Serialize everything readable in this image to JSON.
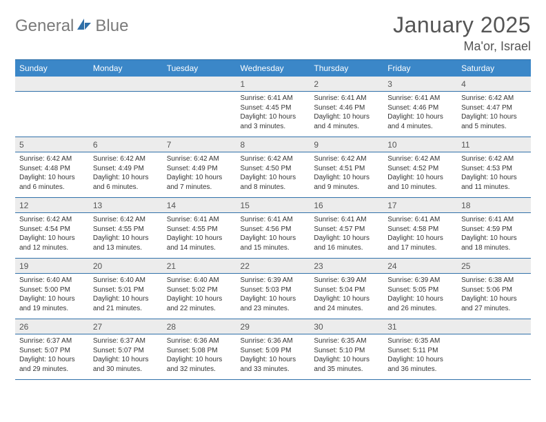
{
  "brand": {
    "part1": "General",
    "part2": "Blue"
  },
  "title": {
    "month": "January 2025",
    "location": "Ma'or, Israel"
  },
  "colors": {
    "header_bg": "#3b87c8",
    "rule": "#2f6fa8",
    "daynum_bg": "#ececec",
    "text": "#333333",
    "muted": "#555555",
    "brand_gray": "#7a7a7a",
    "brand_blue": "#2f6fa8"
  },
  "font": {
    "family": "Arial",
    "daynum_size": 12,
    "info_size": 10,
    "month_size": 32,
    "location_size": 18,
    "header_size": 12
  },
  "weekdays": [
    "Sunday",
    "Monday",
    "Tuesday",
    "Wednesday",
    "Thursday",
    "Friday",
    "Saturday"
  ],
  "weeks": [
    {
      "nums": [
        "",
        "",
        "",
        "1",
        "2",
        "3",
        "4"
      ],
      "info": [
        "",
        "",
        "",
        "Sunrise: 6:41 AM\nSunset: 4:45 PM\nDaylight: 10 hours and 3 minutes.",
        "Sunrise: 6:41 AM\nSunset: 4:46 PM\nDaylight: 10 hours and 4 minutes.",
        "Sunrise: 6:41 AM\nSunset: 4:46 PM\nDaylight: 10 hours and 4 minutes.",
        "Sunrise: 6:42 AM\nSunset: 4:47 PM\nDaylight: 10 hours and 5 minutes."
      ]
    },
    {
      "nums": [
        "5",
        "6",
        "7",
        "8",
        "9",
        "10",
        "11"
      ],
      "info": [
        "Sunrise: 6:42 AM\nSunset: 4:48 PM\nDaylight: 10 hours and 6 minutes.",
        "Sunrise: 6:42 AM\nSunset: 4:49 PM\nDaylight: 10 hours and 6 minutes.",
        "Sunrise: 6:42 AM\nSunset: 4:49 PM\nDaylight: 10 hours and 7 minutes.",
        "Sunrise: 6:42 AM\nSunset: 4:50 PM\nDaylight: 10 hours and 8 minutes.",
        "Sunrise: 6:42 AM\nSunset: 4:51 PM\nDaylight: 10 hours and 9 minutes.",
        "Sunrise: 6:42 AM\nSunset: 4:52 PM\nDaylight: 10 hours and 10 minutes.",
        "Sunrise: 6:42 AM\nSunset: 4:53 PM\nDaylight: 10 hours and 11 minutes."
      ]
    },
    {
      "nums": [
        "12",
        "13",
        "14",
        "15",
        "16",
        "17",
        "18"
      ],
      "info": [
        "Sunrise: 6:42 AM\nSunset: 4:54 PM\nDaylight: 10 hours and 12 minutes.",
        "Sunrise: 6:42 AM\nSunset: 4:55 PM\nDaylight: 10 hours and 13 minutes.",
        "Sunrise: 6:41 AM\nSunset: 4:55 PM\nDaylight: 10 hours and 14 minutes.",
        "Sunrise: 6:41 AM\nSunset: 4:56 PM\nDaylight: 10 hours and 15 minutes.",
        "Sunrise: 6:41 AM\nSunset: 4:57 PM\nDaylight: 10 hours and 16 minutes.",
        "Sunrise: 6:41 AM\nSunset: 4:58 PM\nDaylight: 10 hours and 17 minutes.",
        "Sunrise: 6:41 AM\nSunset: 4:59 PM\nDaylight: 10 hours and 18 minutes."
      ]
    },
    {
      "nums": [
        "19",
        "20",
        "21",
        "22",
        "23",
        "24",
        "25"
      ],
      "info": [
        "Sunrise: 6:40 AM\nSunset: 5:00 PM\nDaylight: 10 hours and 19 minutes.",
        "Sunrise: 6:40 AM\nSunset: 5:01 PM\nDaylight: 10 hours and 21 minutes.",
        "Sunrise: 6:40 AM\nSunset: 5:02 PM\nDaylight: 10 hours and 22 minutes.",
        "Sunrise: 6:39 AM\nSunset: 5:03 PM\nDaylight: 10 hours and 23 minutes.",
        "Sunrise: 6:39 AM\nSunset: 5:04 PM\nDaylight: 10 hours and 24 minutes.",
        "Sunrise: 6:39 AM\nSunset: 5:05 PM\nDaylight: 10 hours and 26 minutes.",
        "Sunrise: 6:38 AM\nSunset: 5:06 PM\nDaylight: 10 hours and 27 minutes."
      ]
    },
    {
      "nums": [
        "26",
        "27",
        "28",
        "29",
        "30",
        "31",
        ""
      ],
      "info": [
        "Sunrise: 6:37 AM\nSunset: 5:07 PM\nDaylight: 10 hours and 29 minutes.",
        "Sunrise: 6:37 AM\nSunset: 5:07 PM\nDaylight: 10 hours and 30 minutes.",
        "Sunrise: 6:36 AM\nSunset: 5:08 PM\nDaylight: 10 hours and 32 minutes.",
        "Sunrise: 6:36 AM\nSunset: 5:09 PM\nDaylight: 10 hours and 33 minutes.",
        "Sunrise: 6:35 AM\nSunset: 5:10 PM\nDaylight: 10 hours and 35 minutes.",
        "Sunrise: 6:35 AM\nSunset: 5:11 PM\nDaylight: 10 hours and 36 minutes.",
        ""
      ]
    }
  ]
}
